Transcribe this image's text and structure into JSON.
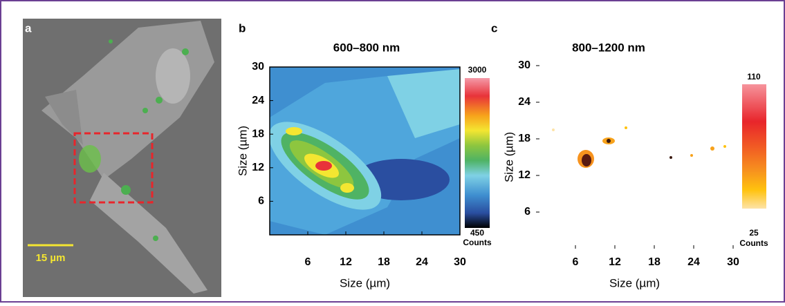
{
  "panels": [
    {
      "letter": "a",
      "scale_bar": "15 µm"
    },
    {
      "letter": "b",
      "title": "600–800 nm",
      "xlabel": "Size (µm)",
      "ylabel": "Size (µm)",
      "xlim": [
        0,
        30
      ],
      "ylim": [
        0,
        30
      ],
      "xticks": [
        6,
        12,
        18,
        24,
        30
      ],
      "yticks": [
        6,
        12,
        18,
        24,
        30
      ],
      "colorbar": {
        "max": 3000,
        "min": 450,
        "unit": "Counts"
      }
    },
    {
      "letter": "c",
      "title": "800–1200 nm",
      "xlabel": "Size (µm)",
      "ylabel": "Size (µm)",
      "xlim": [
        0,
        30
      ],
      "ylim": [
        0,
        30
      ],
      "xticks": [
        6,
        12,
        18,
        24,
        30
      ],
      "yticks": [
        6,
        12,
        18,
        24,
        30
      ],
      "colorbar": {
        "max": 110,
        "min": 25,
        "unit": "Counts"
      }
    }
  ]
}
